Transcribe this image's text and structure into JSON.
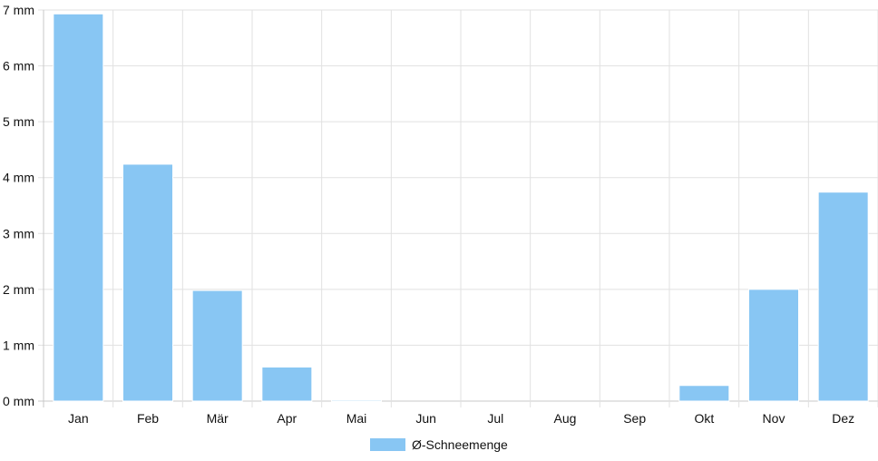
{
  "chart_data": {
    "type": "bar",
    "title": "",
    "xlabel": "",
    "ylabel": "",
    "categories": [
      "Jan",
      "Feb",
      "Mär",
      "Apr",
      "Mai",
      "Jun",
      "Jul",
      "Aug",
      "Sep",
      "Okt",
      "Nov",
      "Dez"
    ],
    "series": [
      {
        "name": "Ø-Schneemenge",
        "values": [
          6.93,
          4.24,
          1.98,
          0.61,
          0.02,
          0,
          0,
          0,
          0,
          0.28,
          2.0,
          3.74
        ],
        "color": "#88c6f3"
      }
    ],
    "ylim": [
      0,
      7
    ],
    "yticks": [
      0,
      1,
      2,
      3,
      4,
      5,
      6,
      7
    ],
    "y_unit": "mm",
    "grid": true,
    "legend": "bottom-center"
  }
}
